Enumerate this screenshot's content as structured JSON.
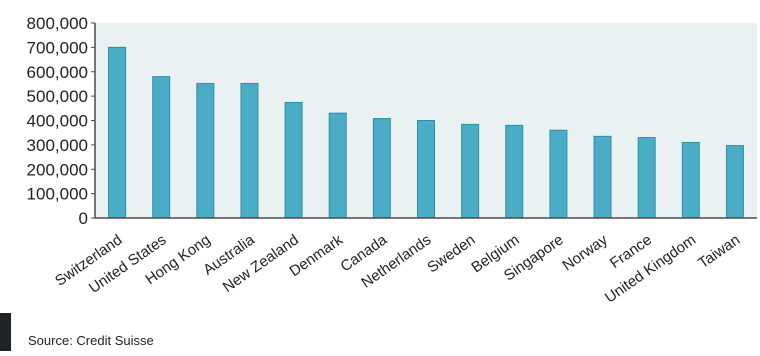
{
  "chart_data": {
    "type": "bar",
    "title": "",
    "xlabel": "",
    "ylabel": "",
    "ylim": [
      0,
      800000
    ],
    "yticks": [
      "0",
      "100,000",
      "200,000",
      "300,000",
      "400,000",
      "500,000",
      "600,000",
      "700,000",
      "800,000"
    ],
    "categories": [
      "Switzerland",
      "United States",
      "Hong Kong",
      "Australia",
      "New Zealand",
      "Denmark",
      "Canada",
      "Netherlands",
      "Sweden",
      "Belgium",
      "Singapore",
      "Norway",
      "France",
      "United Kingdom",
      "Taiwan"
    ],
    "values": [
      700000,
      580000,
      552000,
      552000,
      474000,
      430000,
      408000,
      400000,
      384000,
      380000,
      360000,
      335000,
      330000,
      310000,
      297000
    ],
    "grid": false,
    "legend": "none"
  },
  "colors": {
    "bar": "#4bacc6",
    "bar_edge": "#2d8ea8",
    "plot_background": "#e9f1f3",
    "axis": "#4a4a4a",
    "text": "#222222"
  },
  "source": "Source: Credit Suisse"
}
